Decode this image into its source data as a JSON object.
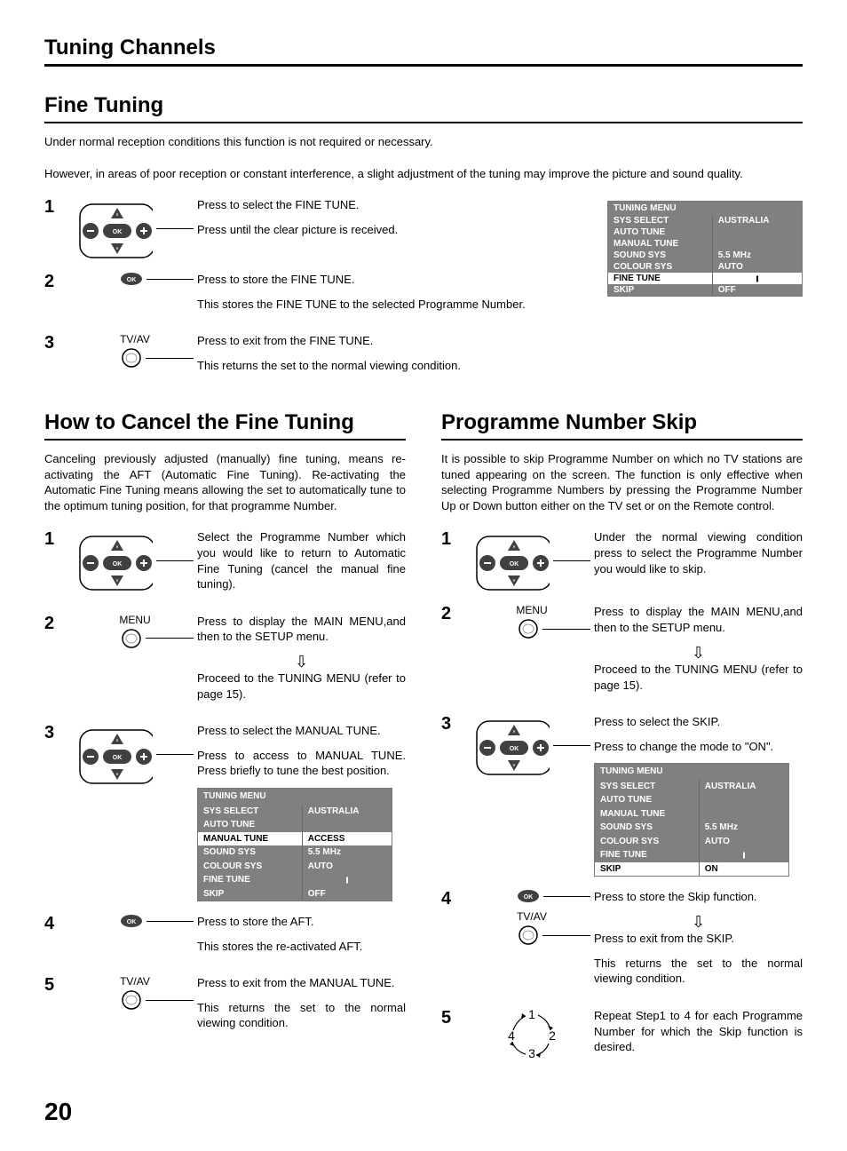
{
  "page_number": "20",
  "title": "Tuning Channels",
  "fine_tuning": {
    "heading": "Fine Tuning",
    "intro1": "Under normal reception conditions this function is not required or necessary.",
    "intro2": "However, in areas of poor reception or constant interference, a slight adjustment of the tuning may improve the picture and sound quality.",
    "steps": {
      "s1a": "Press to select the FINE TUNE.",
      "s1b": "Press until the clear picture is received.",
      "s2a": "Press to store the FINE TUNE.",
      "s2b": "This stores the FINE TUNE to the selected Programme Number.",
      "s3label": "TV/AV",
      "s3a": "Press to exit from the FINE TUNE.",
      "s3b": "This returns the set to the normal viewing condition."
    },
    "menu": {
      "title": "TUNING MENU",
      "rows": [
        {
          "label": "SYS SELECT",
          "value": "AUSTRALIA",
          "sel": false
        },
        {
          "label": "AUTO TUNE",
          "value": "",
          "sel": false
        },
        {
          "label": "MANUAL TUNE",
          "value": "",
          "sel": false
        },
        {
          "label": "SOUND SYS",
          "value": "5.5 MHz",
          "sel": false
        },
        {
          "label": "COLOUR SYS",
          "value": "AUTO",
          "sel": false
        },
        {
          "label": "FINE TUNE",
          "value": "",
          "sel": true,
          "tick": true
        },
        {
          "label": "SKIP",
          "value": "OFF",
          "sel": false
        }
      ]
    }
  },
  "cancel": {
    "heading": "How to Cancel the Fine Tuning",
    "intro": "Canceling previously adjusted (manually) fine tuning, means re-activating the AFT (Automatic Fine Tuning). Re-activating the Automatic Fine Tuning means allowing the set to automatically tune to the optimum tuning position, for that programme Number.",
    "steps": {
      "s1": "Select the Programme Number which you would like to return to Automatic Fine Tuning (cancel the manual fine tuning).",
      "s2label": "MENU",
      "s2a": "Press to display the MAIN MENU,and then to the SETUP menu.",
      "s2b": "Proceed to the TUNING MENU (refer to page 15).",
      "s3a": "Press to select the MANUAL TUNE.",
      "s3b": "Press to access to MANUAL TUNE. Press briefly to tune the best position.",
      "s4a": "Press to store the AFT.",
      "s4b": "This stores the re-activated AFT.",
      "s5label": "TV/AV",
      "s5a": "Press to exit from the MANUAL TUNE.",
      "s5b": "This returns the set to the normal viewing condition."
    },
    "menu": {
      "title": "TUNING MENU",
      "rows": [
        {
          "label": "SYS SELECT",
          "value": "AUSTRALIA",
          "sel": false
        },
        {
          "label": "AUTO TUNE",
          "value": "",
          "sel": false
        },
        {
          "label": "MANUAL TUNE",
          "value": "ACCESS",
          "sel": true
        },
        {
          "label": "SOUND SYS",
          "value": "5.5 MHz",
          "sel": false
        },
        {
          "label": "COLOUR SYS",
          "value": "AUTO",
          "sel": false
        },
        {
          "label": "FINE TUNE",
          "value": "",
          "sel": false,
          "tick": true
        },
        {
          "label": "SKIP",
          "value": "OFF",
          "sel": false
        }
      ]
    }
  },
  "skip": {
    "heading": "Programme Number Skip",
    "intro": "It is possible to skip Programme Number on which no TV stations are tuned appearing on the screen. The function is only effective when selecting Programme Numbers by pressing the Programme Number Up or Down button either on the TV set or on the Remote control.",
    "steps": {
      "s1": "Under the normal viewing condition press to select the Programme Number you would like to skip.",
      "s2label": "MENU",
      "s2a": "Press to display the MAIN MENU,and then to the SETUP menu.",
      "s2b": "Proceed to the TUNING MENU (refer to page 15).",
      "s3a": "Press to select the SKIP.",
      "s3b": "Press to change the mode to \"ON\".",
      "s4a": "Press to store the Skip function.",
      "s4label": "TV/AV",
      "s4b": "Press to exit from the SKIP.",
      "s4c": "This returns the set to the normal viewing condition.",
      "s5": "Repeat Step1 to 4 for each Programme Number for which the Skip function is desired."
    },
    "menu": {
      "title": "TUNING MENU",
      "rows": [
        {
          "label": "SYS SELECT",
          "value": "AUSTRALIA",
          "sel": false
        },
        {
          "label": "AUTO TUNE",
          "value": "",
          "sel": false
        },
        {
          "label": "MANUAL TUNE",
          "value": "",
          "sel": false
        },
        {
          "label": "SOUND SYS",
          "value": "5.5 MHz",
          "sel": false
        },
        {
          "label": "COLOUR SYS",
          "value": "AUTO",
          "sel": false
        },
        {
          "label": "FINE TUNE",
          "value": "",
          "sel": false,
          "tick": true
        },
        {
          "label": "SKIP",
          "value": "ON",
          "sel": true
        }
      ]
    }
  },
  "colors": {
    "menu_bg": "#808080",
    "menu_text": "#ffffff",
    "menu_sel_bg": "#ffffff",
    "menu_sel_text": "#000000",
    "rule": "#000000"
  }
}
